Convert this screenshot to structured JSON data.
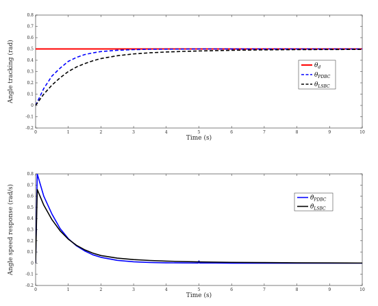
{
  "chart_data": [
    {
      "type": "line",
      "xlabel": "Time (s)",
      "ylabel": "Angle tracking (rad)",
      "xlim": [
        0,
        10
      ],
      "ylim": [
        -0.2,
        0.8
      ],
      "xticks": [
        "0",
        "1",
        "2",
        "3",
        "4",
        "5",
        "6",
        "7",
        "8",
        "9",
        "10"
      ],
      "yticks": [
        "-0.2",
        "-0.1",
        "0",
        "0.1",
        "0.2",
        "0.3",
        "0.4",
        "0.5",
        "0.6",
        "0.7",
        "0.8"
      ],
      "grid": false,
      "legend_position": "right",
      "series": [
        {
          "name": "θ_d",
          "base": "θ",
          "sub": "d",
          "color": "#ff0000",
          "style": "solid",
          "width": 2,
          "x": [
            0,
            10
          ],
          "y": [
            0.5,
            0.5
          ]
        },
        {
          "name": "θ_PDBC",
          "base": "θ",
          "sub": "PDBC",
          "color": "#0000ff",
          "style": "dashed",
          "width": 1.6,
          "x": [
            0,
            0.25,
            0.5,
            0.75,
            1,
            1.25,
            1.5,
            1.75,
            2,
            2.5,
            3,
            3.5,
            4,
            5,
            6,
            7,
            8,
            9,
            10
          ],
          "y": [
            0,
            0.15,
            0.26,
            0.33,
            0.39,
            0.425,
            0.45,
            0.465,
            0.477,
            0.488,
            0.494,
            0.497,
            0.498,
            0.5,
            0.5,
            0.5,
            0.5,
            0.5,
            0.5
          ]
        },
        {
          "name": "θ_LSBC",
          "base": "θ",
          "sub": "LSBC",
          "color": "#000000",
          "style": "dashed",
          "width": 1.6,
          "x": [
            0,
            0.25,
            0.5,
            0.75,
            1,
            1.25,
            1.5,
            1.75,
            2,
            2.5,
            3,
            3.5,
            4,
            4.5,
            5,
            6,
            7,
            8,
            9,
            10
          ],
          "y": [
            0,
            0.1,
            0.18,
            0.245,
            0.3,
            0.34,
            0.37,
            0.395,
            0.415,
            0.44,
            0.456,
            0.466,
            0.473,
            0.478,
            0.482,
            0.488,
            0.492,
            0.494,
            0.495,
            0.496
          ]
        }
      ]
    },
    {
      "type": "line",
      "xlabel": "Time (s)",
      "ylabel": "Angle speed response (rad/s)",
      "xlim": [
        0,
        10
      ],
      "ylim": [
        -0.2,
        0.8
      ],
      "xticks": [
        "0",
        "1",
        "2",
        "3",
        "4",
        "5",
        "6",
        "7",
        "8",
        "9",
        "10"
      ],
      "yticks": [
        "-0.2",
        "-0.1",
        "0",
        "0.1",
        "0.2",
        "0.3",
        "0.4",
        "0.5",
        "0.6",
        "0.7",
        "0.8"
      ],
      "grid": false,
      "legend_position": "right",
      "series": [
        {
          "name": "θ̇_PDBC",
          "base": "θ̇",
          "sub": "PDBC",
          "color": "#0000ff",
          "style": "solid",
          "width": 1.6,
          "x": [
            0,
            0.05,
            0.25,
            0.5,
            0.75,
            1,
            1.25,
            1.5,
            1.75,
            2,
            2.5,
            3,
            3.5,
            4,
            4.5,
            4.98,
            5,
            5.02,
            5.5,
            6,
            7,
            8,
            9,
            10
          ],
          "y": [
            0,
            0.8,
            0.6,
            0.44,
            0.31,
            0.22,
            0.155,
            0.11,
            0.075,
            0.052,
            0.025,
            0.012,
            0.006,
            0.003,
            0.002,
            0.001,
            0.02,
            0.001,
            0.001,
            0,
            0,
            0,
            0,
            0
          ]
        },
        {
          "name": "θ̇_LSBC",
          "base": "θ̇",
          "sub": "LSBC",
          "color": "#000000",
          "style": "solid",
          "width": 1.6,
          "x": [
            0,
            0.05,
            0.25,
            0.5,
            0.75,
            1,
            1.25,
            1.5,
            1.75,
            2,
            2.5,
            3,
            3.5,
            4,
            5,
            6,
            7,
            8,
            9,
            10
          ],
          "y": [
            0,
            0.66,
            0.52,
            0.39,
            0.29,
            0.215,
            0.16,
            0.12,
            0.09,
            0.068,
            0.045,
            0.032,
            0.024,
            0.018,
            0.011,
            0.007,
            0.005,
            0.003,
            0.002,
            0.001
          ]
        }
      ]
    }
  ]
}
